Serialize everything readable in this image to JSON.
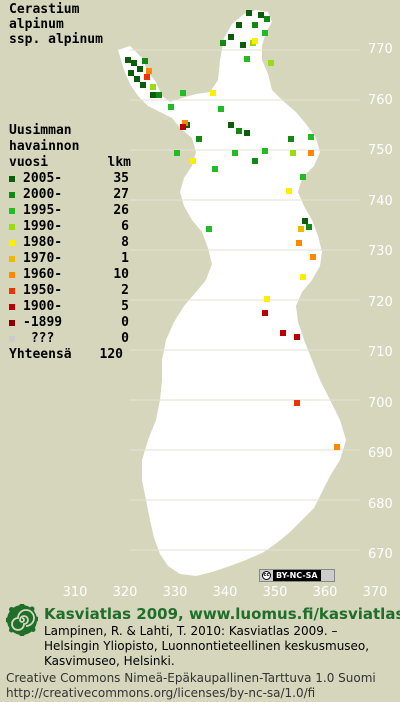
{
  "title": {
    "line1": "Cerastium",
    "line2": "alpinum",
    "line3": "ssp. alpinum"
  },
  "legend": {
    "head1": "Uusimman",
    "head2": "havainnon",
    "head3": "vuosi",
    "head_count": "lkm",
    "rows": [
      {
        "label": "2005-",
        "count": "35",
        "color": "#0b5c0b"
      },
      {
        "label": "2000-",
        "count": "27",
        "color": "#118a11"
      },
      {
        "label": "1995-",
        "count": "26",
        "color": "#22bb22"
      },
      {
        "label": "1990-",
        "count": "6",
        "color": "#99dd11"
      },
      {
        "label": "1980-",
        "count": "8",
        "color": "#ffee00"
      },
      {
        "label": "1970-",
        "count": "1",
        "color": "#f0b800"
      },
      {
        "label": "1960-",
        "count": "10",
        "color": "#ff8800"
      },
      {
        "label": "1950-",
        "count": "2",
        "color": "#ee3300"
      },
      {
        "label": "1900-",
        "count": "5",
        "color": "#bb0000"
      },
      {
        "label": "-1899",
        "count": "0",
        "color": "#880000"
      },
      {
        "label": " ???",
        "count": "0",
        "color": "#cccccc"
      }
    ],
    "total_label": "Yhteensä",
    "total_count": "120"
  },
  "axes": {
    "y_labels": [
      "770",
      "760",
      "750",
      "740",
      "730",
      "720",
      "710",
      "700",
      "690",
      "680",
      "670"
    ],
    "x_labels": [
      "310",
      "320",
      "330",
      "340",
      "350",
      "360",
      "370"
    ]
  },
  "colors": {
    "background": "#d6d6bd",
    "land": "#ffffff",
    "grid": "#c8c8c8",
    "brand_green": "#1f6e2a"
  },
  "cc_badge": {
    "symbol": "cc",
    "text": "BY-NC-SA"
  },
  "footer": {
    "logo_icon": "kasviatlas-spiral-logo",
    "brand": "Kasviatlas 2009, www.luomus.fi/kasviatlas",
    "citation_line1": "Lampinen, R. & Lahti, T. 2010: Kasviatlas 2009. –",
    "citation_line2": "Helsingin Yliopisto, Luonnontieteellinen keskusmuseo,",
    "citation_line3": "Kasvimuseo, Helsinki.",
    "license_line1": "Creative Commons Nimeä-Epäkaupallinen-Tarttuva 1.0 Suomi",
    "license_line2": "http://creativecommons.org/licenses/by-nc-sa/1.0/fi"
  }
}
